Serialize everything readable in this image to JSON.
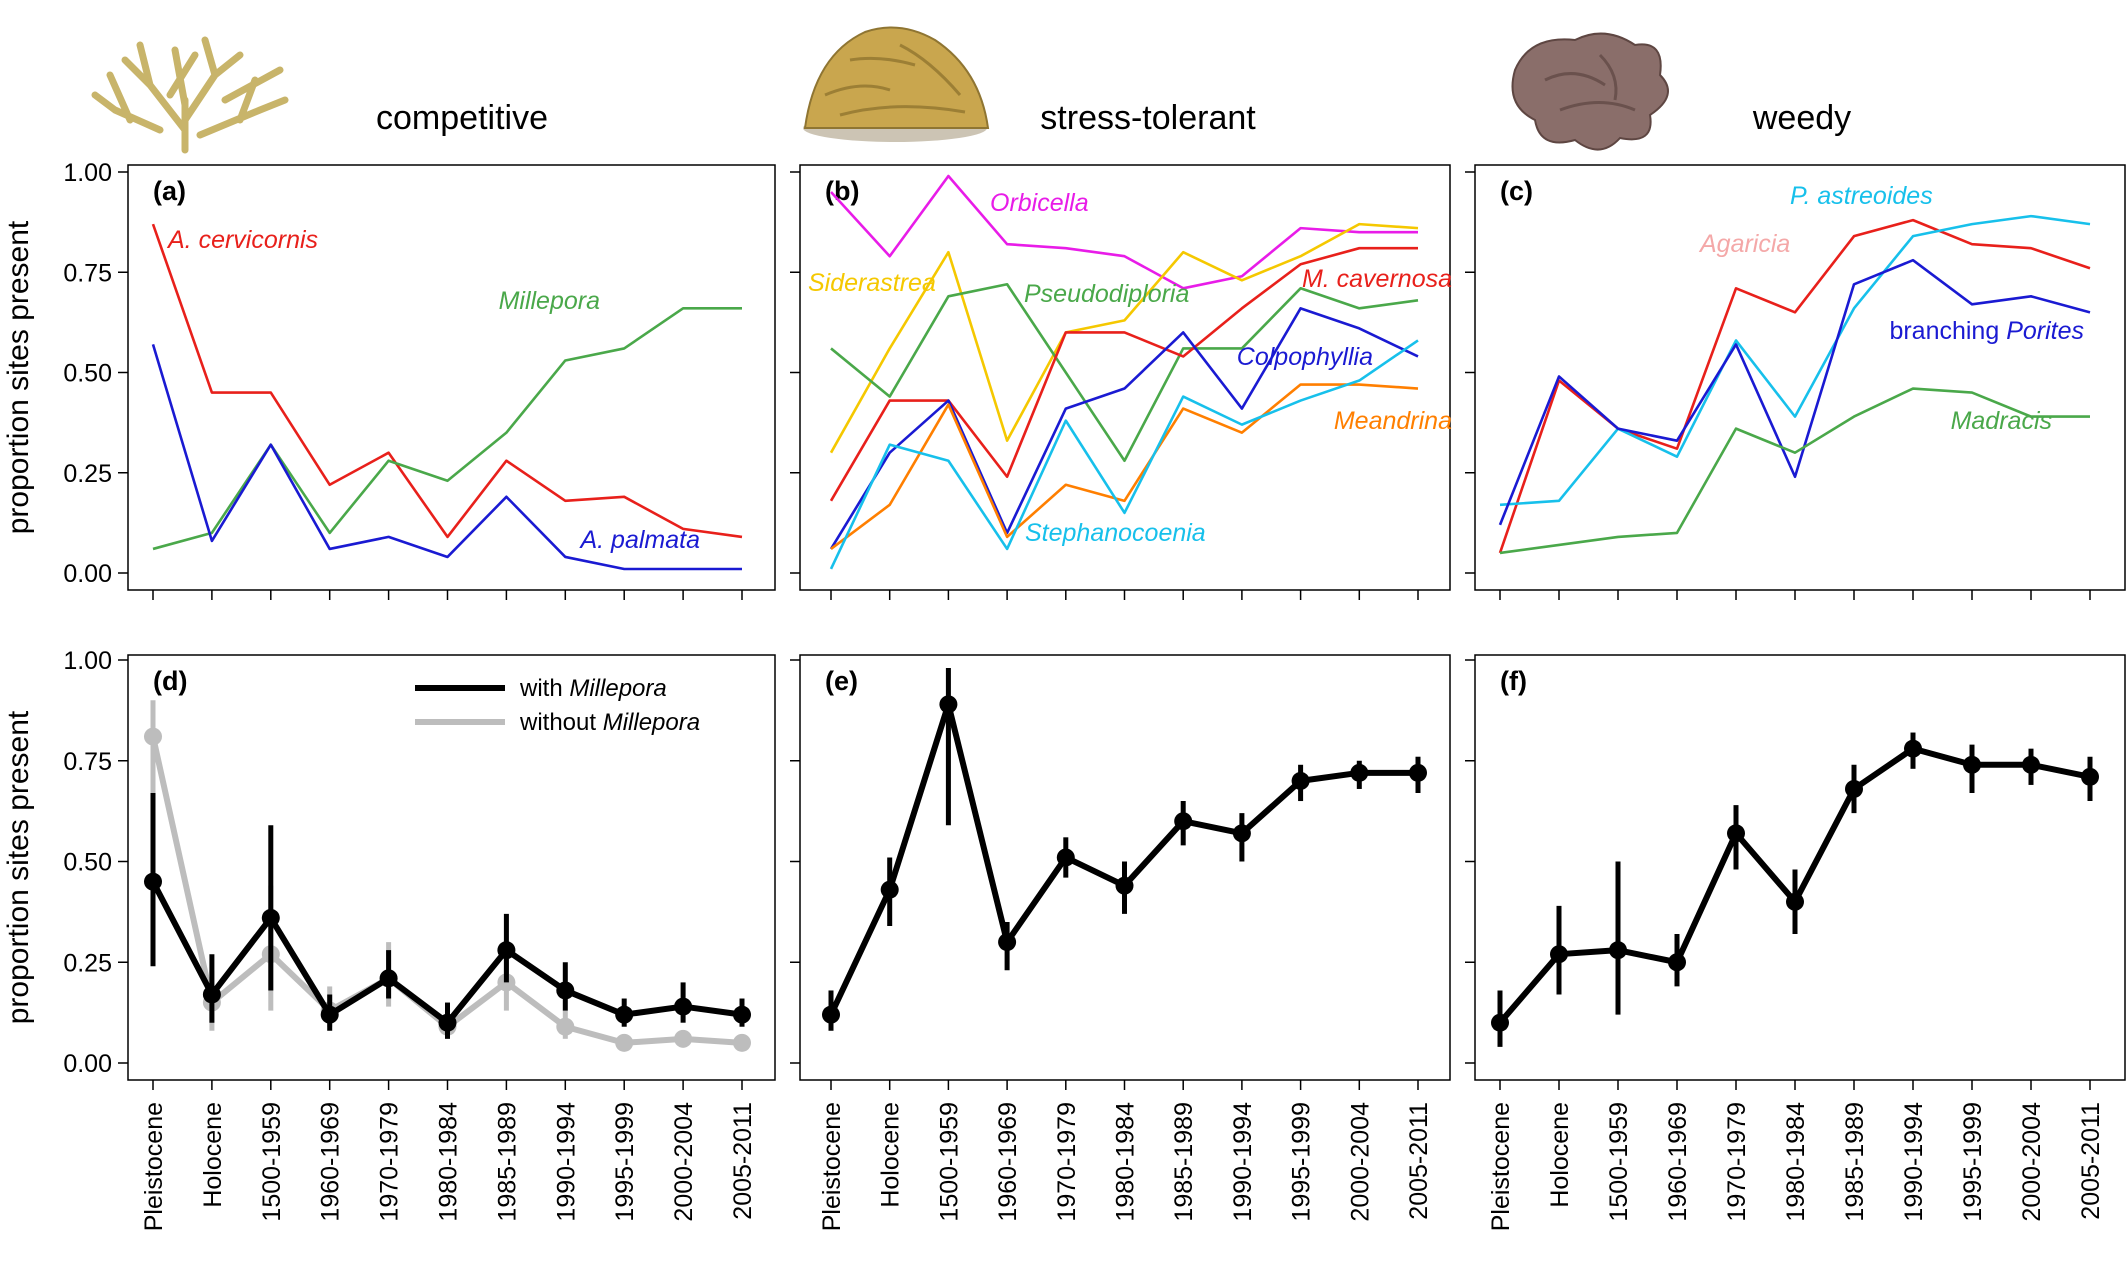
{
  "groups": [
    {
      "title": "competitive"
    },
    {
      "title": "stress-tolerant"
    },
    {
      "title": "weedy"
    }
  ],
  "chart_data": [
    {
      "panel": "(a)",
      "type": "line",
      "group": "competitive",
      "ylabel": "proportion sites present",
      "ylim": [
        0,
        1
      ],
      "yticks": [
        "0.00",
        "0.25",
        "0.50",
        "0.75",
        "1.00"
      ],
      "categories": [
        "Pleistocene",
        "Holocene",
        "1500-1959",
        "1960-1969",
        "1970-1979",
        "1980-1984",
        "1985-1989",
        "1990-1994",
        "1995-1999",
        "2000-2004",
        "2005-2011"
      ],
      "series": [
        {
          "name": "A. cervicornis",
          "prefix": "",
          "color": "#e8201b",
          "values": [
            0.87,
            0.45,
            0.45,
            0.22,
            0.3,
            0.09,
            0.28,
            0.18,
            0.19,
            0.11,
            0.09
          ]
        },
        {
          "name": "Millepora",
          "prefix": "",
          "color": "#4aa84a",
          "values": [
            0.06,
            0.1,
            0.32,
            0.1,
            0.28,
            0.23,
            0.35,
            0.53,
            0.56,
            0.66,
            0.66
          ]
        },
        {
          "name": "A. palmata",
          "prefix": "",
          "color": "#1a1ad2",
          "values": [
            0.57,
            0.08,
            0.32,
            0.06,
            0.09,
            0.04,
            0.19,
            0.04,
            0.01,
            0.01,
            0.01
          ]
        }
      ]
    },
    {
      "panel": "(b)",
      "type": "line",
      "group": "stress-tolerant",
      "ylim": [
        0,
        1
      ],
      "categories": [
        "Pleistocene",
        "Holocene",
        "1500-1959",
        "1960-1969",
        "1970-1979",
        "1980-1984",
        "1985-1989",
        "1990-1994",
        "1995-1999",
        "2000-2004",
        "2005-2011"
      ],
      "series": [
        {
          "name": "Orbicella",
          "prefix": "",
          "color": "#e81ce8",
          "values": [
            0.95,
            0.79,
            0.99,
            0.82,
            0.81,
            0.79,
            0.71,
            0.74,
            0.86,
            0.85,
            0.85
          ]
        },
        {
          "name": "Siderastrea",
          "prefix": "",
          "color": "#f5c800",
          "values": [
            0.3,
            0.56,
            0.8,
            0.33,
            0.6,
            0.63,
            0.8,
            0.73,
            0.79,
            0.87,
            0.86
          ]
        },
        {
          "name": "Pseudodiploria",
          "prefix": "",
          "color": "#4aa84a",
          "values": [
            0.56,
            0.44,
            0.69,
            0.72,
            0.5,
            0.28,
            0.56,
            0.56,
            0.71,
            0.66,
            0.68
          ]
        },
        {
          "name": "M. cavernosa",
          "prefix": "",
          "color": "#e8201b",
          "values": [
            0.18,
            0.43,
            0.43,
            0.24,
            0.6,
            0.6,
            0.54,
            0.66,
            0.77,
            0.81,
            0.81
          ]
        },
        {
          "name": "Colpophyllia",
          "prefix": "",
          "color": "#1a1ad2",
          "values": [
            0.06,
            0.3,
            0.43,
            0.1,
            0.41,
            0.46,
            0.6,
            0.41,
            0.66,
            0.61,
            0.54
          ]
        },
        {
          "name": "Meandrina",
          "prefix": "",
          "color": "#ff7f00",
          "values": [
            0.06,
            0.17,
            0.42,
            0.09,
            0.22,
            0.18,
            0.41,
            0.35,
            0.47,
            0.47,
            0.46
          ]
        },
        {
          "name": "Stephanocoenia",
          "prefix": "",
          "color": "#17c0eb",
          "values": [
            0.01,
            0.32,
            0.28,
            0.06,
            0.38,
            0.15,
            0.44,
            0.37,
            0.43,
            0.48,
            0.58
          ]
        }
      ]
    },
    {
      "panel": "(c)",
      "type": "line",
      "group": "weedy",
      "ylim": [
        0,
        1
      ],
      "categories": [
        "Pleistocene",
        "Holocene",
        "1500-1959",
        "1960-1969",
        "1970-1979",
        "1980-1984",
        "1985-1989",
        "1990-1994",
        "1995-1999",
        "2000-2004",
        "2005-2011"
      ],
      "series": [
        {
          "name": "Agaricia",
          "prefix": "",
          "color": "#e8201b",
          "label_color": "#f4a8a8",
          "values": [
            0.05,
            0.48,
            0.36,
            0.31,
            0.71,
            0.65,
            0.84,
            0.88,
            0.82,
            0.81,
            0.76
          ]
        },
        {
          "name": "P. astreoides",
          "prefix": "",
          "color": "#17c0eb",
          "values": [
            0.17,
            0.18,
            0.36,
            0.29,
            0.58,
            0.39,
            0.66,
            0.84,
            0.87,
            0.89,
            0.87
          ]
        },
        {
          "name": "Porites",
          "prefix": "branching ",
          "color": "#1a1ad2",
          "values": [
            0.12,
            0.49,
            0.36,
            0.33,
            0.57,
            0.24,
            0.72,
            0.78,
            0.67,
            0.69,
            0.65
          ]
        },
        {
          "name": "Madracis",
          "prefix": "",
          "color": "#4aa84a",
          "values": [
            0.05,
            0.07,
            0.09,
            0.1,
            0.36,
            0.3,
            0.39,
            0.46,
            0.45,
            0.39,
            0.39
          ]
        }
      ]
    },
    {
      "panel": "(d)",
      "type": "line",
      "group": "competitive",
      "ylabel": "proportion sites present",
      "ylim": [
        0,
        1
      ],
      "yticks": [
        "0.00",
        "0.25",
        "0.50",
        "0.75",
        "1.00"
      ],
      "categories": [
        "Pleistocene",
        "Holocene",
        "1500-1959",
        "1960-1969",
        "1970-1979",
        "1980-1984",
        "1985-1989",
        "1990-1994",
        "1995-1999",
        "2000-2004",
        "2005-2011"
      ],
      "legend": [
        {
          "prefix": "with ",
          "name": "Millepora",
          "color": "#000000"
        },
        {
          "prefix": "without ",
          "name": "Millepora",
          "color": "#bdbdbd"
        }
      ],
      "series": [
        {
          "name": "without Millepora",
          "color": "#bdbdbd",
          "values": [
            0.81,
            0.15,
            0.27,
            0.13,
            0.21,
            0.09,
            0.2,
            0.09,
            0.05,
            0.06,
            0.05
          ],
          "lower": [
            0.64,
            0.08,
            0.13,
            0.09,
            0.14,
            0.06,
            0.13,
            0.06,
            0.03,
            0.04,
            0.03
          ],
          "upper": [
            0.9,
            0.23,
            0.44,
            0.19,
            0.3,
            0.13,
            0.27,
            0.13,
            0.07,
            0.08,
            0.07
          ]
        },
        {
          "name": "with Millepora",
          "color": "#000000",
          "values": [
            0.45,
            0.17,
            0.36,
            0.12,
            0.21,
            0.1,
            0.28,
            0.18,
            0.12,
            0.14,
            0.12
          ],
          "lower": [
            0.24,
            0.1,
            0.18,
            0.08,
            0.16,
            0.06,
            0.2,
            0.13,
            0.09,
            0.1,
            0.09
          ],
          "upper": [
            0.67,
            0.27,
            0.59,
            0.17,
            0.28,
            0.15,
            0.37,
            0.25,
            0.16,
            0.2,
            0.16
          ]
        }
      ]
    },
    {
      "panel": "(e)",
      "type": "line",
      "group": "stress-tolerant",
      "ylim": [
        0,
        1
      ],
      "categories": [
        "Pleistocene",
        "Holocene",
        "1500-1959",
        "1960-1969",
        "1970-1979",
        "1980-1984",
        "1985-1989",
        "1990-1994",
        "1995-1999",
        "2000-2004",
        "2005-2011"
      ],
      "series": [
        {
          "name": "",
          "color": "#000000",
          "values": [
            0.12,
            0.43,
            0.89,
            0.3,
            0.51,
            0.44,
            0.6,
            0.57,
            0.7,
            0.72,
            0.72
          ],
          "lower": [
            0.08,
            0.34,
            0.59,
            0.23,
            0.46,
            0.37,
            0.54,
            0.5,
            0.65,
            0.68,
            0.67
          ],
          "upper": [
            0.18,
            0.51,
            0.98,
            0.35,
            0.56,
            0.5,
            0.65,
            0.62,
            0.74,
            0.75,
            0.76
          ]
        }
      ]
    },
    {
      "panel": "(f)",
      "type": "line",
      "group": "weedy",
      "ylim": [
        0,
        1
      ],
      "categories": [
        "Pleistocene",
        "Holocene",
        "1500-1959",
        "1960-1969",
        "1970-1979",
        "1980-1984",
        "1985-1989",
        "1990-1994",
        "1995-1999",
        "2000-2004",
        "2005-2011"
      ],
      "series": [
        {
          "name": "",
          "color": "#000000",
          "values": [
            0.1,
            0.27,
            0.28,
            0.25,
            0.57,
            0.4,
            0.68,
            0.78,
            0.74,
            0.74,
            0.71
          ],
          "lower": [
            0.04,
            0.17,
            0.12,
            0.19,
            0.48,
            0.32,
            0.62,
            0.73,
            0.67,
            0.69,
            0.65
          ],
          "upper": [
            0.18,
            0.39,
            0.5,
            0.32,
            0.64,
            0.48,
            0.74,
            0.82,
            0.79,
            0.78,
            0.76
          ]
        }
      ]
    }
  ]
}
